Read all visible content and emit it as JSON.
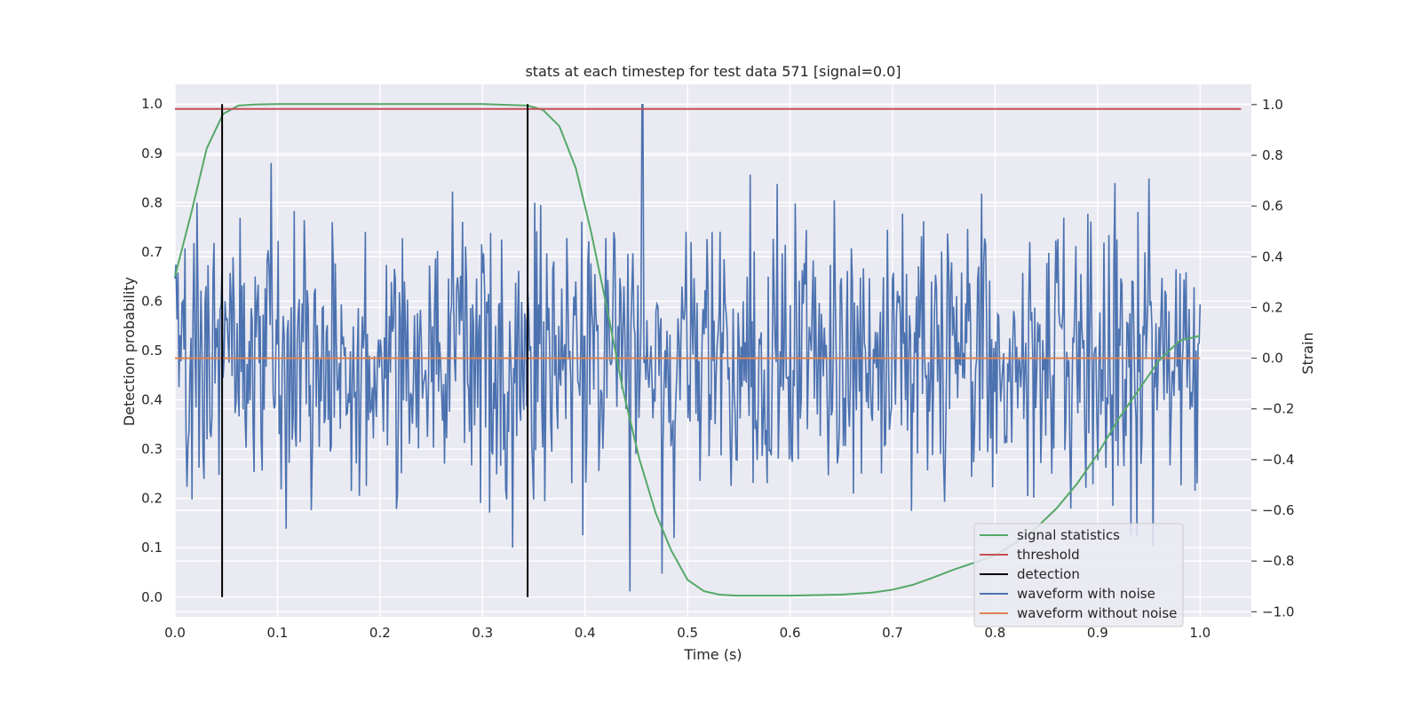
{
  "chart_data": {
    "type": "line",
    "title": "stats at each timestep for test data 571 [signal=0.0]",
    "xlabel": "Time (s)",
    "ylabel": "Detection probability",
    "y2label": "Strain",
    "xlim": [
      0.0,
      1.05
    ],
    "ylim": [
      -0.04,
      1.04
    ],
    "y2lim": [
      -1.02,
      1.08
    ],
    "x_ticks": [
      "0.0",
      "0.1",
      "0.2",
      "0.3",
      "0.4",
      "0.5",
      "0.6",
      "0.7",
      "0.8",
      "0.9",
      "1.0"
    ],
    "y_ticks": [
      "0.0",
      "0.1",
      "0.2",
      "0.3",
      "0.4",
      "0.5",
      "0.6",
      "0.7",
      "0.8",
      "0.9",
      "1.0"
    ],
    "y2_ticks": [
      "−1.0",
      "−0.8",
      "−0.6",
      "−0.4",
      "−0.2",
      "0.0",
      "0.2",
      "0.4",
      "0.6",
      "0.8",
      "1.0"
    ],
    "grid": true,
    "legend_position": "lower-right",
    "series": [
      {
        "name": "signal statistics",
        "color": "#55a868",
        "axis": "left",
        "x": [
          0.0,
          0.016,
          0.031,
          0.047,
          0.062,
          0.078,
          0.1,
          0.2,
          0.3,
          0.344,
          0.359,
          0.375,
          0.391,
          0.406,
          0.422,
          0.437,
          0.453,
          0.469,
          0.484,
          0.5,
          0.516,
          0.531,
          0.547,
          0.562,
          0.6,
          0.65,
          0.68,
          0.7,
          0.72,
          0.74,
          0.76,
          0.78,
          0.8,
          0.82,
          0.84,
          0.86,
          0.88,
          0.9,
          0.92,
          0.94,
          0.96,
          0.98,
          1.0
        ],
        "y": [
          0.65,
          0.78,
          0.91,
          0.98,
          0.997,
          0.999,
          1.0,
          1.0,
          1.0,
          0.997,
          0.988,
          0.955,
          0.87,
          0.74,
          0.58,
          0.42,
          0.28,
          0.17,
          0.095,
          0.035,
          0.012,
          0.005,
          0.003,
          0.003,
          0.003,
          0.005,
          0.009,
          0.015,
          0.025,
          0.04,
          0.056,
          0.07,
          0.085,
          0.11,
          0.14,
          0.18,
          0.23,
          0.29,
          0.36,
          0.42,
          0.48,
          0.52,
          0.53
        ]
      },
      {
        "name": "threshold",
        "color": "#c44e52",
        "axis": "left",
        "x": [
          0.0,
          1.04
        ],
        "y": [
          0.99,
          0.99
        ]
      },
      {
        "name": "detection",
        "color": "#000000",
        "axis": "left",
        "segments": [
          {
            "x": 0.046,
            "y": [
              0.0,
              1.0
            ]
          },
          {
            "x": 0.344,
            "y": [
              0.0,
              1.0
            ]
          }
        ]
      },
      {
        "name": "waveform with noise",
        "color": "#4c72b0",
        "axis": "right",
        "x_range": [
          0.0,
          1.0
        ],
        "points": 1024,
        "noise_std": 0.28,
        "max_value": 1.0,
        "max_at": 0.456,
        "min_value": -0.92,
        "min_at": 0.444
      },
      {
        "name": "waveform without noise",
        "color": "#dd8452",
        "axis": "right",
        "x": [
          0.0,
          1.0
        ],
        "y": [
          0.0,
          0.0
        ]
      }
    ]
  }
}
